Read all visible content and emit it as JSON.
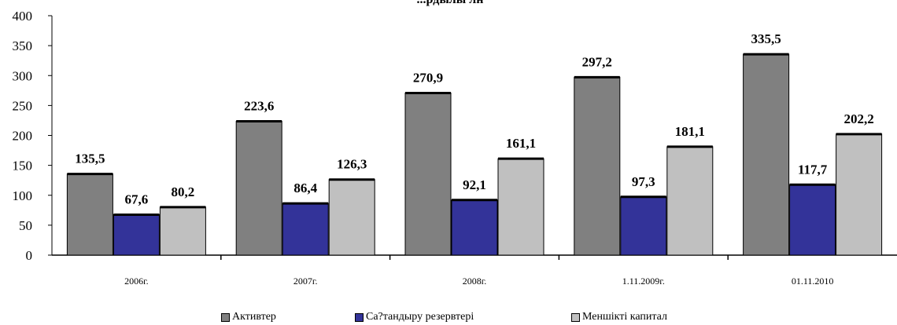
{
  "chart_data": {
    "type": "bar",
    "title": "...рдылы  лн",
    "categories": [
      "2006г.",
      "2007г.",
      "2008г.",
      "1.11.2009г.",
      "01.11.2010"
    ],
    "series": [
      {
        "name": "Активтер",
        "values": [
          135.5,
          223.6,
          270.9,
          297.2,
          335.5
        ],
        "labels": [
          "135,5",
          "223,6",
          "270,9",
          "297,2",
          "335,5"
        ],
        "color": "#808080"
      },
      {
        "name": "Са?тандыру резервтері",
        "values": [
          67.6,
          86.4,
          92.1,
          97.3,
          117.7
        ],
        "labels": [
          "67,6",
          "86,4",
          "92,1",
          "97,3",
          "117,7"
        ],
        "color": "#333399"
      },
      {
        "name": "Меншікті капитал",
        "values": [
          80.2,
          126.3,
          161.1,
          181.1,
          202.2
        ],
        "labels": [
          "80,2",
          "126,3",
          "161,1",
          "181,1",
          "202,2"
        ],
        "color": "#c0c0c0"
      }
    ],
    "ylim": [
      0,
      400
    ],
    "yticks": [
      0,
      50,
      100,
      150,
      200,
      250,
      300,
      350,
      400
    ],
    "grid": false,
    "legend_position": "bottom"
  }
}
